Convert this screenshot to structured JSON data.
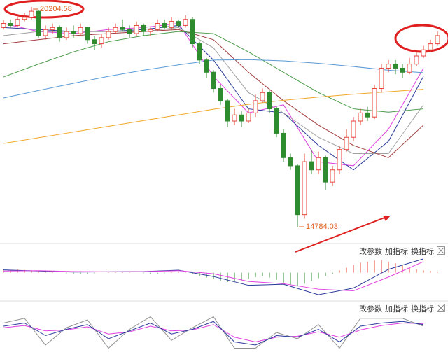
{
  "chart_data": {
    "type": "candlestick",
    "up_color": "#e8433a",
    "down_color": "#2e8b2e",
    "ylim": [
      14440,
      20377
    ],
    "candles": {
      "open": [
        19700,
        19800,
        19750,
        19900,
        19950,
        20100,
        19500,
        19650,
        19700,
        19450,
        19600,
        19550,
        19700,
        19400,
        19300,
        19450,
        19600,
        19700,
        19650,
        19550,
        19750,
        19600,
        19650,
        19800,
        19700,
        19850,
        19750,
        19900,
        19300,
        18900,
        18600,
        18200,
        17900,
        17400,
        17550,
        17400,
        17600,
        17900,
        18100,
        17700,
        17100,
        16500,
        16300,
        15100,
        16400,
        16200,
        16500,
        15900,
        16200,
        16700,
        17000,
        17400,
        17600,
        17500,
        18200,
        18700,
        18800,
        18700,
        18600,
        18800,
        19000,
        19150,
        19300
      ],
      "high": [
        19880,
        19900,
        19950,
        20050,
        20204.58,
        20120,
        19750,
        19800,
        19750,
        19700,
        19750,
        19800,
        19720,
        19500,
        19550,
        19700,
        19800,
        19900,
        19750,
        19850,
        19800,
        19700,
        19900,
        19900,
        19950,
        19900,
        20000,
        19950,
        19350,
        18950,
        18650,
        18300,
        17950,
        17700,
        17650,
        17700,
        18050,
        18200,
        18150,
        17750,
        17200,
        16600,
        16350,
        16600,
        16700,
        16650,
        16550,
        16300,
        16800,
        17200,
        17500,
        17700,
        17750,
        18300,
        18800,
        18900,
        18900,
        18800,
        18950,
        19100,
        19250,
        19400,
        19600
      ],
      "low": [
        19650,
        19700,
        19700,
        19850,
        19900,
        19450,
        19400,
        19550,
        19350,
        19400,
        19450,
        19500,
        19300,
        19150,
        19200,
        19400,
        19550,
        19600,
        19450,
        19500,
        19500,
        19500,
        19600,
        19650,
        19650,
        19700,
        19700,
        19200,
        18800,
        18450,
        18100,
        17800,
        17250,
        17300,
        17250,
        17350,
        17500,
        17850,
        17600,
        17000,
        16400,
        16200,
        14784.03,
        15000,
        16100,
        16100,
        15700,
        15800,
        16100,
        16650,
        16900,
        17300,
        17400,
        17450,
        18100,
        18600,
        18550,
        18450,
        18550,
        18750,
        18950,
        19100,
        19250
      ],
      "close": [
        19800,
        19750,
        19900,
        19950,
        20100,
        19500,
        19650,
        19700,
        19450,
        19600,
        19550,
        19700,
        19400,
        19300,
        19450,
        19600,
        19700,
        19650,
        19550,
        19750,
        19600,
        19650,
        19800,
        19700,
        19850,
        19750,
        19900,
        19300,
        18900,
        18600,
        18200,
        17900,
        17400,
        17550,
        17400,
        17600,
        17900,
        18100,
        17700,
        17100,
        16500,
        16300,
        15100,
        16400,
        16200,
        16500,
        15900,
        16200,
        16700,
        17000,
        17400,
        17600,
        17500,
        18200,
        18700,
        18800,
        18700,
        18600,
        18800,
        19000,
        19150,
        19300,
        19500
      ]
    },
    "ma": {
      "x": [
        0,
        5,
        10,
        15,
        20,
        25,
        30,
        35,
        40,
        45,
        50,
        55,
        60
      ],
      "series": [
        {
          "color": "#e040e0",
          "values": [
            19800,
            19600,
            19550,
            19650,
            19700,
            19800,
            18500,
            17600,
            17800,
            16400,
            16300,
            17200,
            18700
          ]
        },
        {
          "color": "#2a3a9a",
          "values": [
            19700,
            19650,
            19600,
            19600,
            19650,
            19750,
            18900,
            17700,
            17600,
            16800,
            16200,
            16900,
            18500
          ]
        },
        {
          "color": "#a0a0a0",
          "values": [
            19500,
            19600,
            19600,
            19600,
            19600,
            19700,
            19200,
            18100,
            17600,
            17000,
            16600,
            16600,
            17800
          ]
        },
        {
          "color": "#a03c3c",
          "values": [
            19300,
            19400,
            19500,
            19550,
            19600,
            19650,
            19400,
            18600,
            17900,
            17300,
            16800,
            16500,
            17300
          ]
        },
        {
          "color": "#4a9a4a",
          "values": [
            18483,
            18800,
            19100,
            19350,
            19500,
            19600,
            19550,
            19100,
            18600,
            18100,
            17700,
            17620,
            17700
          ]
        },
        {
          "color": "#5a9ad6",
          "values": [
            17967,
            18150,
            18330,
            18500,
            18650,
            18780,
            18900,
            18910,
            18880,
            18820,
            18740,
            18650,
            18590
          ]
        },
        {
          "color": "#f0a828",
          "values": [
            16850,
            16990,
            17130,
            17270,
            17410,
            17550,
            17690,
            17810,
            17910,
            17990,
            18060,
            18120,
            18180
          ]
        }
      ]
    },
    "macd": {
      "ylim": [
        -450,
        350
      ],
      "hist": [
        40,
        50,
        60,
        50,
        40,
        30,
        20,
        10,
        0,
        -10,
        -20,
        -30,
        -20,
        -10,
        0,
        10,
        20,
        20,
        10,
        0,
        -10,
        -20,
        -20,
        -10,
        10,
        20,
        10,
        -30,
        -60,
        -90,
        -120,
        -150,
        -170,
        -160,
        -140,
        -110,
        -80,
        -60,
        -90,
        -130,
        -180,
        -220,
        -250,
        -200,
        -150,
        -100,
        -60,
        -20,
        40,
        90,
        140,
        180,
        200,
        220,
        230,
        200,
        170,
        130,
        90,
        60,
        40,
        30,
        20
      ],
      "dif": {
        "color": "#2a3a9a",
        "values": [
          50,
          30,
          10,
          15,
          20,
          45,
          -70,
          -230,
          -210,
          -400,
          -280,
          60,
          250
        ]
      },
      "dea": {
        "color": "#e040e0",
        "values": [
          30,
          35,
          20,
          15,
          18,
          35,
          -20,
          -160,
          -200,
          -300,
          -330,
          -80,
          200
        ]
      },
      "buttons": [
        "改参数",
        "加指标",
        "换指标"
      ]
    },
    "kdj": {
      "ylim": [
        -10,
        110
      ],
      "x": [
        0,
        3,
        6,
        9,
        12,
        15,
        18,
        21,
        24,
        27,
        30,
        33,
        36,
        39,
        42,
        45,
        48,
        51,
        54,
        57,
        60
      ],
      "k": {
        "color": "#2a3a9a",
        "values": [
          70,
          80,
          40,
          60,
          75,
          30,
          55,
          80,
          45,
          60,
          85,
          20,
          10,
          40,
          35,
          60,
          20,
          70,
          80,
          85,
          75
        ]
      },
      "d": {
        "color": "#e040e0",
        "values": [
          65,
          72,
          55,
          58,
          68,
          45,
          52,
          70,
          55,
          58,
          75,
          35,
          20,
          35,
          38,
          52,
          35,
          58,
          72,
          80,
          78
        ]
      },
      "j": {
        "color": "#909090",
        "values": [
          80,
          95,
          10,
          65,
          90,
          0,
          60,
          100,
          25,
          65,
          100,
          0,
          0,
          50,
          30,
          75,
          0,
          95,
          95,
          95,
          70
        ]
      },
      "buttons": [
        "改参数",
        "加指标",
        "换指标"
      ]
    }
  }
}
